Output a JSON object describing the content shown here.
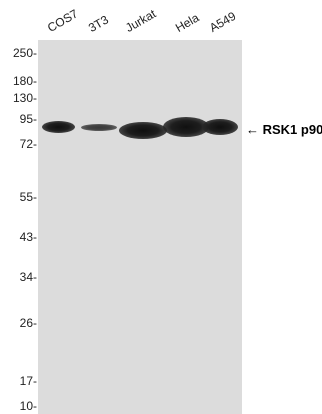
{
  "lanes": [
    "COS7",
    "3T3",
    "Jurkat",
    "Hela",
    "A549"
  ],
  "markers": [
    "250-",
    "180-",
    "130-",
    "95-",
    "72-",
    "55-",
    "43-",
    "34-",
    "26-",
    "17-",
    "10-"
  ],
  "target": "← RSK1 p90",
  "colors": {
    "background": "#ffffff",
    "membrane": "#dcdcdc",
    "band": "#111111"
  }
}
